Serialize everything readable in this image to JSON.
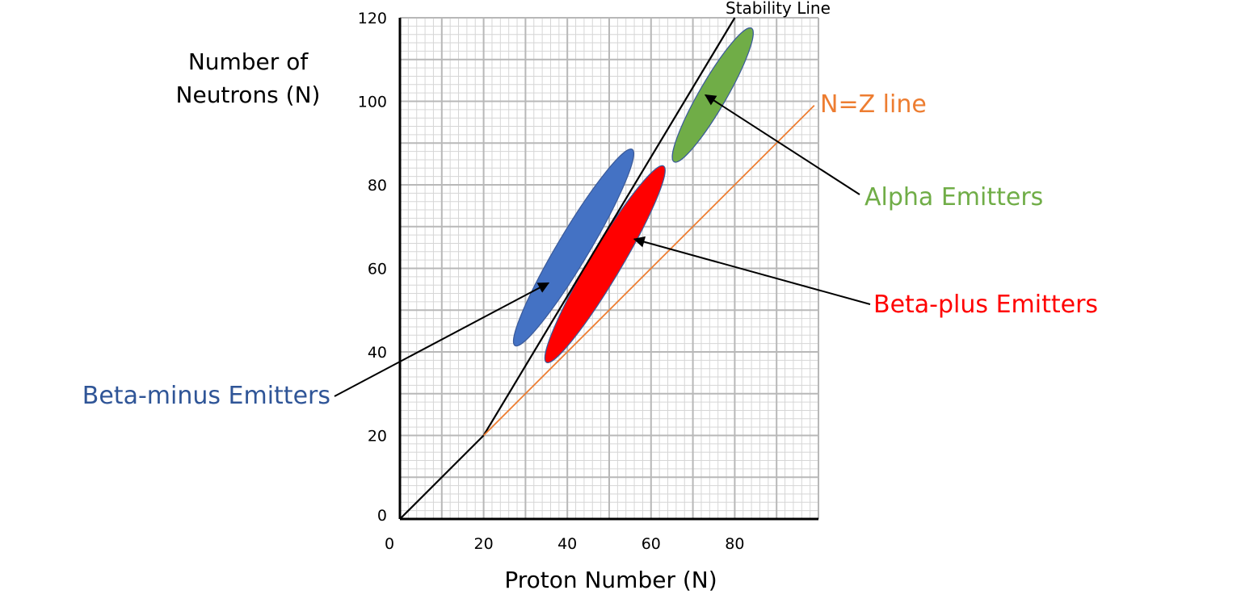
{
  "chart_data": {
    "type": "diagram-chart",
    "xlabel": "Proton Number (N)",
    "ylabel": [
      "Number of",
      "Neutrons (N)"
    ],
    "xlim": [
      0,
      100
    ],
    "ylim": [
      0,
      120
    ],
    "x_ticks": [
      0,
      20,
      40,
      60,
      80
    ],
    "y_ticks": [
      0,
      20,
      40,
      60,
      80,
      100,
      120
    ],
    "grid": true,
    "lines": [
      {
        "name": "Stability Line",
        "label": "Stability Line",
        "color": "#000000",
        "points": [
          [
            0,
            0
          ],
          [
            20,
            20
          ],
          [
            80,
            120
          ]
        ]
      },
      {
        "name": "N=Z line",
        "label": "N=Z line",
        "color": "#ED7D31",
        "points": [
          [
            20,
            20
          ],
          [
            99,
            99
          ]
        ]
      }
    ],
    "regions": [
      {
        "name": "Beta-minus Emitters",
        "label": "Beta-minus Emitters",
        "color": "#4472C4",
        "from": [
          27.5,
          41.5
        ],
        "to": [
          55.5,
          88.5
        ],
        "width_units": 7.5,
        "arrow_to": [
          35.5,
          56.5
        ]
      },
      {
        "name": "Beta-plus Emitters",
        "label": "Beta-plus Emitters",
        "color": "#FF0000",
        "from": [
          35,
          37.5
        ],
        "to": [
          63,
          84.5
        ],
        "width_units": 7.5,
        "arrow_to": [
          56,
          67
        ]
      },
      {
        "name": "Alpha Emitters",
        "label": "Alpha Emitters",
        "color": "#70AD47",
        "from": [
          65.5,
          85.5
        ],
        "to": [
          84,
          117.5
        ],
        "width_units": 6.5,
        "arrow_to": [
          73,
          101.5
        ]
      }
    ],
    "annotation_colors": {
      "beta_minus": "#2F5597",
      "beta_plus": "#FF0000",
      "alpha": "#70AD47",
      "nz": "#ED7D31"
    }
  }
}
